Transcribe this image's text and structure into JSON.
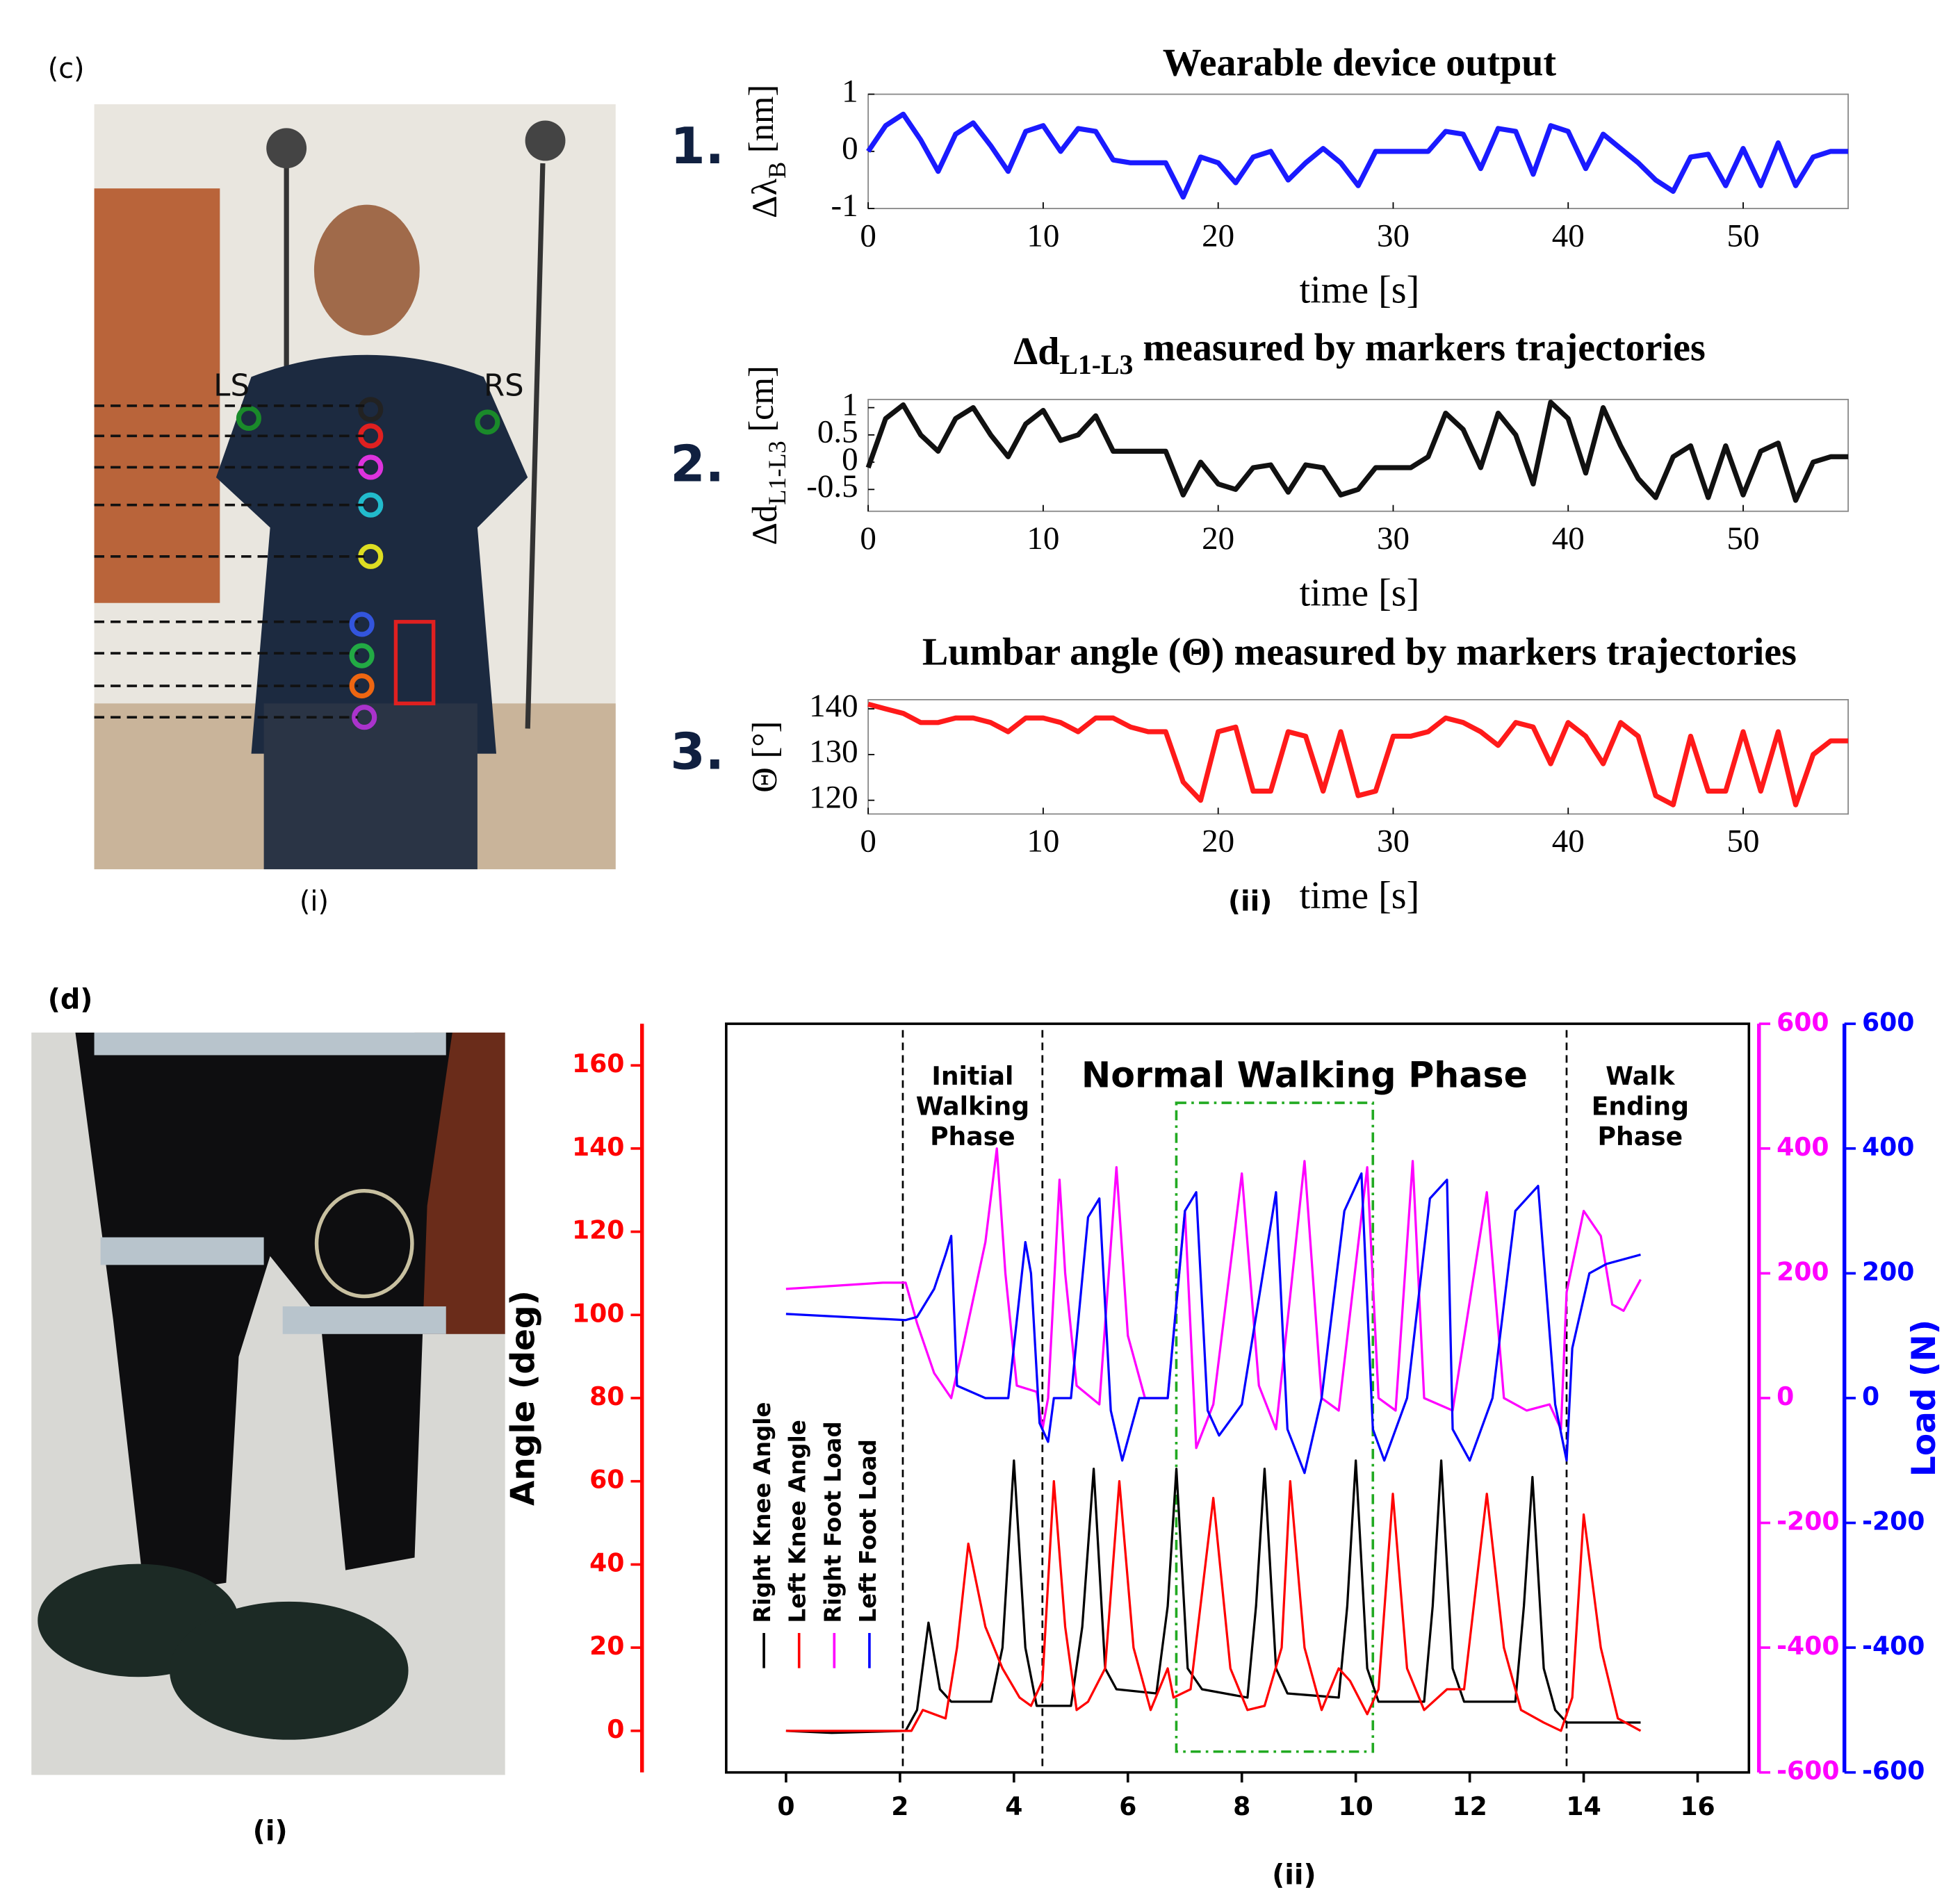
{
  "figure": {
    "panel_c": "(c)",
    "panel_c_i": "(i)",
    "panel_c_ii": "(ii)",
    "panel_d": "(d)",
    "panel_d_i": "(i)",
    "panel_d_ii": "(ii)",
    "ls": "LS",
    "rs": "RS",
    "num1": "1.",
    "num2": "2.",
    "num3": "3."
  },
  "chart_data": [
    {
      "type": "line",
      "title": "Wearable device output",
      "ylabel": [
        "Δλ",
        "B",
        " [nm]"
      ],
      "xlabel": "time [s]",
      "xlim": [
        0,
        56
      ],
      "xticks": [
        0,
        10,
        20,
        30,
        40,
        50
      ],
      "ylim": [
        -1,
        1
      ],
      "yticks": [
        -1,
        0,
        1
      ],
      "x": [
        0,
        1,
        2,
        3,
        4,
        5,
        6,
        7,
        8,
        9,
        10,
        11,
        12,
        13,
        14,
        15,
        16,
        17,
        18,
        19,
        20,
        21,
        22,
        23,
        24,
        25,
        26,
        27,
        28,
        29,
        30,
        31,
        32,
        33,
        34,
        35,
        36,
        37,
        38,
        39,
        40,
        41,
        42,
        43,
        44,
        45,
        46,
        47,
        48,
        49,
        50,
        51,
        52,
        53,
        54,
        55,
        56
      ],
      "series": [
        {
          "color": "#1a1aff",
          "values": [
            0,
            0.45,
            0.65,
            0.2,
            -0.35,
            0.3,
            0.5,
            0.1,
            -0.35,
            0.35,
            0.45,
            0.0,
            0.4,
            0.35,
            -0.15,
            -0.2,
            -0.2,
            -0.2,
            -0.8,
            -0.1,
            -0.2,
            -0.55,
            -0.1,
            0.0,
            -0.5,
            -0.2,
            0.05,
            -0.2,
            -0.6,
            0.0,
            0.0,
            0.0,
            0.0,
            0.35,
            0.3,
            -0.3,
            0.4,
            0.35,
            -0.4,
            0.45,
            0.35,
            -0.3,
            0.3,
            0.05,
            -0.2,
            -0.5,
            -0.7,
            -0.1,
            -0.05,
            -0.6,
            0.05,
            -0.6,
            0.15,
            -0.6,
            -0.1,
            0,
            0
          ]
        }
      ]
    },
    {
      "type": "line",
      "title": [
        "Δd",
        "L1-L3",
        " measured by markers trajectories"
      ],
      "ylabel": [
        "Δd",
        "L1-L3",
        " [cm]"
      ],
      "xlabel": "time [s]",
      "xlim": [
        0,
        56
      ],
      "xticks": [
        0,
        10,
        20,
        30,
        40,
        50
      ],
      "ylim": [
        -0.9,
        1.15
      ],
      "yticks": [
        -0.5,
        0,
        0.5,
        1
      ],
      "x": [
        0,
        1,
        2,
        3,
        4,
        5,
        6,
        7,
        8,
        9,
        10,
        11,
        12,
        13,
        14,
        15,
        16,
        17,
        18,
        19,
        20,
        21,
        22,
        23,
        24,
        25,
        26,
        27,
        28,
        29,
        30,
        31,
        32,
        33,
        34,
        35,
        36,
        37,
        38,
        39,
        40,
        41,
        42,
        43,
        44,
        45,
        46,
        47,
        48,
        49,
        50,
        51,
        52,
        53,
        54,
        55,
        56
      ],
      "series": [
        {
          "color": "#111111",
          "values": [
            -0.1,
            0.8,
            1.05,
            0.5,
            0.2,
            0.8,
            1.0,
            0.5,
            0.1,
            0.7,
            0.95,
            0.4,
            0.5,
            0.85,
            0.2,
            0.2,
            0.2,
            0.2,
            -0.6,
            0,
            -0.4,
            -0.5,
            -0.1,
            -0.05,
            -0.55,
            -0.05,
            -0.1,
            -0.6,
            -0.5,
            -0.1,
            -0.1,
            -0.1,
            0.1,
            0.9,
            0.6,
            -0.1,
            0.9,
            0.5,
            -0.4,
            1.1,
            0.8,
            -0.2,
            1.0,
            0.3,
            -0.3,
            -0.65,
            0.1,
            0.3,
            -0.65,
            0.3,
            -0.6,
            0.2,
            0.35,
            -0.7,
            0.0,
            0.1,
            0.1
          ]
        }
      ]
    },
    {
      "type": "line",
      "title": "Lumbar angle (Θ) measured by markers trajectories",
      "ylabel": "Θ [°]",
      "xlabel": "time [s]",
      "xlim": [
        0,
        56
      ],
      "xticks": [
        0,
        10,
        20,
        30,
        40,
        50
      ],
      "ylim": [
        117,
        142
      ],
      "yticks": [
        120,
        130,
        140
      ],
      "x": [
        0,
        1,
        2,
        3,
        4,
        5,
        6,
        7,
        8,
        9,
        10,
        11,
        12,
        13,
        14,
        15,
        16,
        17,
        18,
        19,
        20,
        21,
        22,
        23,
        24,
        25,
        26,
        27,
        28,
        29,
        30,
        31,
        32,
        33,
        34,
        35,
        36,
        37,
        38,
        39,
        40,
        41,
        42,
        43,
        44,
        45,
        46,
        47,
        48,
        49,
        50,
        51,
        52,
        53,
        54,
        55,
        56
      ],
      "series": [
        {
          "color": "#ff1a1a",
          "values": [
            141,
            140,
            139,
            137,
            137,
            138,
            138,
            137,
            135,
            138,
            138,
            137,
            135,
            138,
            138,
            136,
            135,
            135,
            124,
            120,
            135,
            136,
            122,
            122,
            135,
            134,
            122,
            135,
            121,
            122,
            134,
            134,
            135,
            138,
            137,
            135,
            132,
            137,
            136,
            128,
            137,
            134,
            128,
            137,
            134,
            121,
            119,
            134,
            122,
            122,
            135,
            122,
            135,
            119,
            130,
            133,
            133
          ]
        }
      ]
    },
    {
      "type": "line",
      "ylabel": "Angle (deg)",
      "y3label": "Load (N)",
      "legend": "lower left",
      "xlim": [
        -1.05,
        16.9
      ],
      "xticks": [
        0,
        2,
        4,
        6,
        8,
        10,
        12,
        14,
        16
      ],
      "ylim": [
        -10,
        170
      ],
      "yticks": [
        0,
        20,
        40,
        60,
        80,
        100,
        120,
        140,
        160
      ],
      "ycolor": "#ff0000",
      "y2lim": [
        -600,
        600
      ],
      "y2ticks": [
        -600,
        -400,
        -200,
        0,
        200,
        400,
        600
      ],
      "y2color": "#ff00ff",
      "y3lim": [
        -600,
        600
      ],
      "y3ticks": [
        -600,
        -400,
        -200,
        0,
        200,
        400,
        600
      ],
      "y3color": "#0000ff",
      "phase_lines": [
        2.05,
        4.5,
        13.7
      ],
      "annotations": [
        [
          "Initial",
          "Walking",
          "Phase"
        ],
        [
          "Normal Walking Phase"
        ],
        [
          "Walk",
          "Ending",
          "Phase"
        ]
      ],
      "highlight": {
        "x": [
          6.85,
          10.3
        ],
        "y": [
          -5,
          151
        ],
        "color": "#22aa22"
      },
      "series": [
        {
          "name": "Right Knee Angle",
          "color": "#000000",
          "axis": "y",
          "x": [
            0,
            0.8,
            2.1,
            2.3,
            2.5,
            2.7,
            2.9,
            3.6,
            3.8,
            4.0,
            4.2,
            4.4,
            5.0,
            5.2,
            5.4,
            5.6,
            5.8,
            6.5,
            6.7,
            6.85,
            7.05,
            7.3,
            8.1,
            8.25,
            8.4,
            8.6,
            8.8,
            9.7,
            9.85,
            10.0,
            10.2,
            10.4,
            11.2,
            11.35,
            11.5,
            11.7,
            11.9,
            12.8,
            12.95,
            13.1,
            13.3,
            13.5,
            13.7,
            15
          ],
          "values": [
            0,
            -0.5,
            0,
            5,
            26,
            10,
            7,
            7,
            20,
            65,
            20,
            6,
            6,
            25,
            63,
            15,
            10,
            9,
            30,
            63,
            15,
            10,
            8,
            30,
            63,
            15,
            9,
            8,
            30,
            65,
            15,
            7,
            7,
            30,
            65,
            15,
            7,
            7,
            30,
            61,
            15,
            5,
            2,
            2
          ]
        },
        {
          "name": "Left Knee Angle",
          "color": "#ff0000",
          "axis": "y",
          "x": [
            0,
            2.2,
            2.4,
            2.8,
            3.0,
            3.2,
            3.5,
            3.8,
            4.1,
            4.3,
            4.5,
            4.7,
            4.9,
            5.1,
            5.3,
            5.6,
            5.85,
            6.1,
            6.4,
            6.7,
            6.8,
            7.1,
            7.5,
            7.8,
            8.1,
            8.4,
            8.7,
            8.85,
            9.1,
            9.4,
            9.7,
            9.9,
            10.2,
            10.4,
            10.65,
            10.9,
            11.2,
            11.6,
            11.9,
            12.3,
            12.6,
            12.9,
            13.3,
            13.6,
            13.8,
            14.0,
            14.3,
            14.6,
            15
          ],
          "values": [
            0,
            0,
            5,
            3,
            20,
            45,
            25,
            15,
            8,
            6,
            12,
            60,
            25,
            5,
            7,
            15,
            60,
            20,
            5,
            15,
            8,
            10,
            56,
            15,
            5,
            6,
            20,
            60,
            20,
            5,
            15,
            12,
            4,
            10,
            57,
            15,
            5,
            10,
            10,
            57,
            20,
            5,
            2,
            0,
            8,
            52,
            20,
            3,
            0
          ]
        },
        {
          "name": "Right Foot Load",
          "color": "#ff00ff",
          "axis": "y2",
          "x": [
            0,
            1.7,
            2.1,
            2.3,
            2.6,
            2.9,
            3.1,
            3.5,
            3.7,
            3.85,
            4.05,
            4.4,
            4.5,
            4.6,
            4.8,
            4.9,
            5.1,
            5.5,
            5.8,
            6.0,
            6.3,
            6.7,
            7.0,
            7.2,
            7.5,
            8.0,
            8.3,
            8.6,
            9.1,
            9.4,
            9.7,
            10.2,
            10.4,
            10.7,
            11.0,
            11.2,
            11.7,
            12.3,
            12.6,
            13.0,
            13.4,
            13.6,
            13.7,
            14.0,
            14.3,
            14.5,
            14.7,
            15
          ],
          "values": [
            175,
            185,
            185,
            120,
            40,
            0,
            80,
            250,
            400,
            200,
            20,
            10,
            -50,
            0,
            350,
            200,
            20,
            -10,
            370,
            100,
            0,
            0,
            300,
            -80,
            -10,
            360,
            20,
            -50,
            380,
            0,
            -20,
            370,
            0,
            -20,
            380,
            0,
            -20,
            330,
            0,
            -20,
            -10,
            -50,
            170,
            300,
            260,
            150,
            140,
            190
          ]
        },
        {
          "name": "Left Foot Load",
          "color": "#0000ff",
          "axis": "y3",
          "x": [
            0,
            2.1,
            2.3,
            2.6,
            2.8,
            2.9,
            3.0,
            3.5,
            3.9,
            4.2,
            4.3,
            4.45,
            4.6,
            4.7,
            5.0,
            5.3,
            5.5,
            5.7,
            5.9,
            6.2,
            6.7,
            7.0,
            7.2,
            7.4,
            7.6,
            8.0,
            8.6,
            8.8,
            9.1,
            9.4,
            9.8,
            10.1,
            10.3,
            10.5,
            10.9,
            11.3,
            11.6,
            11.7,
            12.0,
            12.4,
            12.8,
            13.2,
            13.5,
            13.7,
            13.8,
            14.1,
            14.4,
            15
          ],
          "values": [
            135,
            125,
            130,
            175,
            230,
            260,
            20,
            0,
            0,
            250,
            200,
            -40,
            -70,
            0,
            0,
            290,
            320,
            -20,
            -100,
            0,
            0,
            300,
            330,
            -20,
            -60,
            -10,
            330,
            -50,
            -120,
            0,
            300,
            360,
            -50,
            -100,
            0,
            320,
            350,
            -50,
            -100,
            0,
            300,
            340,
            -10,
            -100,
            80,
            200,
            215,
            230
          ]
        }
      ]
    }
  ]
}
